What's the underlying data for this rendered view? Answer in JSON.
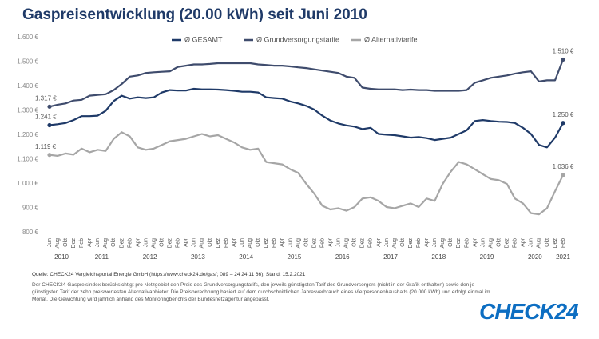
{
  "chart_data": {
    "type": "line",
    "title": "Gaspreisentwicklung (20.00 kWh) seit Juni 2010",
    "categories": [
      "Jun",
      "Aug",
      "Okt",
      "Dez",
      "Feb",
      "Apr",
      "Jun",
      "Aug",
      "Okt",
      "Dez",
      "Feb",
      "Apr",
      "Jun",
      "Aug",
      "Okt",
      "Dez",
      "Feb",
      "Apr",
      "Jun",
      "Aug",
      "Okt",
      "Dez",
      "Feb",
      "Apr",
      "Jun",
      "Aug",
      "Okt",
      "Dez",
      "Feb",
      "Apr",
      "Jun",
      "Aug",
      "Okt",
      "Dez",
      "Feb",
      "Apr",
      "Jun",
      "Aug",
      "Okt",
      "Dez",
      "Feb",
      "Apr",
      "Jun",
      "Aug",
      "Okt",
      "Dez",
      "Feb",
      "Apr",
      "Jun",
      "Aug",
      "Okt",
      "Dez",
      "Feb",
      "Apr",
      "Jun",
      "Aug",
      "Okt",
      "Dez",
      "Feb",
      "Apr",
      "Jun",
      "Aug",
      "Okt",
      "Dez",
      "Feb"
    ],
    "year_labels": [
      "2010",
      "2011",
      "2012",
      "2013",
      "2014",
      "2015",
      "2016",
      "2017",
      "2018",
      "2019",
      "2020",
      "2021"
    ],
    "series": [
      {
        "name": "Ø GESAMT",
        "color": "#1f3a68",
        "values": [
          1241,
          1245,
          1250,
          1262,
          1278,
          1278,
          1280,
          1300,
          1340,
          1362,
          1350,
          1355,
          1352,
          1355,
          1375,
          1385,
          1383,
          1383,
          1390,
          1388,
          1388,
          1387,
          1385,
          1382,
          1378,
          1378,
          1375,
          1355,
          1352,
          1350,
          1338,
          1330,
          1320,
          1305,
          1280,
          1260,
          1248,
          1240,
          1235,
          1225,
          1230,
          1205,
          1202,
          1200,
          1195,
          1190,
          1192,
          1188,
          1180,
          1185,
          1190,
          1205,
          1220,
          1258,
          1262,
          1258,
          1255,
          1254,
          1250,
          1230,
          1205,
          1160,
          1150,
          1190,
          1250
        ],
        "value_labels": [
          "1.241 €",
          null,
          null,
          null,
          null,
          null,
          null,
          null,
          null,
          null,
          null,
          null,
          null,
          null,
          null,
          null,
          null,
          null,
          null,
          null,
          null,
          null,
          null,
          null,
          null,
          null,
          null,
          null,
          null,
          null,
          null,
          null,
          null,
          null,
          null,
          null,
          null,
          null,
          null,
          null,
          null,
          null,
          null,
          null,
          null,
          null,
          null,
          null,
          null,
          null,
          null,
          null,
          null,
          null,
          null,
          null,
          null,
          null,
          null,
          null,
          null,
          null,
          null,
          null,
          "1.250 €"
        ]
      },
      {
        "name": "Ø Grundversorgungstarife",
        "color": "#3f4c6d",
        "values": [
          1317,
          1325,
          1330,
          1342,
          1345,
          1362,
          1365,
          1368,
          1385,
          1410,
          1440,
          1445,
          1455,
          1458,
          1460,
          1462,
          1480,
          1485,
          1490,
          1490,
          1492,
          1495,
          1495,
          1495,
          1495,
          1495,
          1490,
          1488,
          1485,
          1485,
          1482,
          1478,
          1475,
          1470,
          1465,
          1460,
          1455,
          1440,
          1435,
          1395,
          1390,
          1388,
          1388,
          1388,
          1385,
          1387,
          1385,
          1385,
          1382,
          1382,
          1382,
          1382,
          1385,
          1415,
          1425,
          1435,
          1440,
          1445,
          1452,
          1458,
          1462,
          1420,
          1425,
          1425,
          1510
        ],
        "value_labels": [
          "1.317 €",
          null,
          null,
          null,
          null,
          null,
          null,
          null,
          null,
          null,
          null,
          null,
          null,
          null,
          null,
          null,
          null,
          null,
          null,
          null,
          null,
          null,
          null,
          null,
          null,
          null,
          null,
          null,
          null,
          null,
          null,
          null,
          null,
          null,
          null,
          null,
          null,
          null,
          null,
          null,
          null,
          null,
          null,
          null,
          null,
          null,
          null,
          null,
          null,
          null,
          null,
          null,
          null,
          null,
          null,
          null,
          null,
          null,
          null,
          null,
          null,
          null,
          null,
          null,
          "1.510 €"
        ]
      },
      {
        "name": "Ø Alternativtarife",
        "color": "#a6a6a6",
        "values": [
          1119,
          1115,
          1125,
          1120,
          1145,
          1130,
          1140,
          1135,
          1185,
          1212,
          1195,
          1150,
          1140,
          1145,
          1160,
          1175,
          1180,
          1185,
          1195,
          1205,
          1195,
          1200,
          1185,
          1170,
          1150,
          1140,
          1145,
          1090,
          1085,
          1080,
          1060,
          1045,
          1000,
          960,
          910,
          895,
          900,
          890,
          905,
          940,
          945,
          930,
          905,
          900,
          910,
          920,
          905,
          940,
          930,
          1000,
          1050,
          1090,
          1080,
          1060,
          1040,
          1020,
          1015,
          1000,
          940,
          920,
          880,
          875,
          900,
          970,
          1036
        ],
        "value_labels": [
          "1.119 €",
          null,
          null,
          null,
          null,
          null,
          null,
          null,
          null,
          null,
          null,
          null,
          null,
          null,
          null,
          null,
          null,
          null,
          null,
          null,
          null,
          null,
          null,
          null,
          null,
          null,
          null,
          null,
          null,
          null,
          null,
          null,
          null,
          null,
          null,
          null,
          null,
          null,
          null,
          null,
          null,
          null,
          null,
          null,
          null,
          null,
          null,
          null,
          null,
          null,
          null,
          null,
          null,
          null,
          null,
          null,
          null,
          null,
          null,
          null,
          null,
          null,
          null,
          null,
          "1.036 €"
        ]
      }
    ],
    "ylim": [
      800,
      1600
    ],
    "yticks": [
      {
        "value": 800,
        "label": "800 €"
      },
      {
        "value": 900,
        "label": "900 €"
      },
      {
        "value": 1000,
        "label": "1.000 €"
      },
      {
        "value": 1100,
        "label": "1.100 €"
      },
      {
        "value": 1200,
        "label": "1.200 €"
      },
      {
        "value": 1300,
        "label": "1.300 €"
      },
      {
        "value": 1400,
        "label": "1.400 €"
      },
      {
        "value": 1500,
        "label": "1.500 €"
      },
      {
        "value": 1600,
        "label": "1.600 €"
      }
    ],
    "grid": false,
    "legend": "top"
  },
  "footer": {
    "source": "Quelle: CHECK24 Vergleichsportal Energie GmbH (https://www.check24.de/gas/; 089 – 24 24 11 66); Stand: 15.2.2021",
    "description": "Der CHECK24-Gaspreisindex berücksichtigt pro Netzgebiet den Preis des Grundversorgungstarifs, den jeweils günstigsten Tarif des Grundversorgers (nicht in der Grafik enthalten) sowie den je günstigsten Tarif der zehn preiswertesten Alternativanbieter. Die Preisberechnung basiert auf dem durchschnittlichen Jahresverbrauch eines Vierpersonenhaushalts (20.000 kWh) und erfolgt einmal im Monat. Die Gewichtung wird jährlich anhand des Monitoringberichts der Bundesnetzagentur angepasst.",
    "logo": "CHECK24"
  }
}
